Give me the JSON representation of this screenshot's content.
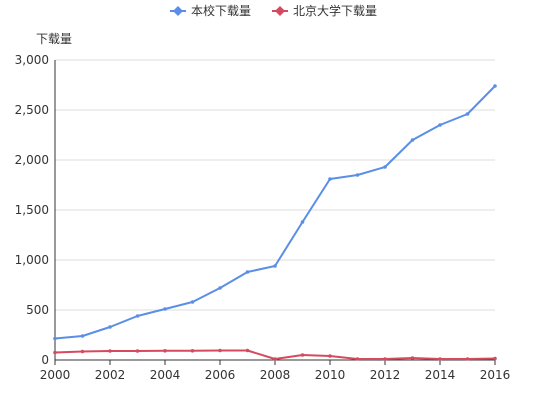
{
  "chart_data": {
    "type": "line",
    "ylabel": "下载量",
    "ylim": [
      0,
      3000
    ],
    "yticks": [
      "0",
      "500",
      "1,000",
      "1,500",
      "2,000",
      "2,500",
      "3,000"
    ],
    "ytick_values": [
      0,
      500,
      1000,
      1500,
      2000,
      2500,
      3000
    ],
    "xlim": [
      2000,
      2016
    ],
    "xticks": [
      "2000",
      "2002",
      "2004",
      "2006",
      "2008",
      "2010",
      "2012",
      "2014",
      "2016"
    ],
    "xtick_values": [
      2000,
      2002,
      2004,
      2006,
      2008,
      2010,
      2012,
      2014,
      2016
    ],
    "x": [
      2000,
      2001,
      2002,
      2003,
      2004,
      2005,
      2006,
      2007,
      2008,
      2009,
      2010,
      2011,
      2012,
      2013,
      2014,
      2015,
      2016
    ],
    "grid": "horizontal",
    "legend_position": "top-center",
    "series": [
      {
        "name": "本校下载量",
        "color": "#5b8ee6",
        "marker": "diamond",
        "values": [
          215,
          240,
          330,
          440,
          510,
          580,
          720,
          880,
          940,
          1380,
          1810,
          1850,
          1930,
          2200,
          2350,
          2460,
          2740
        ]
      },
      {
        "name": "北京大学下载量",
        "color": "#d64a5f",
        "marker": "diamond",
        "values": [
          75,
          85,
          90,
          90,
          92,
          92,
          95,
          95,
          10,
          50,
          40,
          10,
          10,
          20,
          10,
          10,
          15
        ]
      }
    ]
  }
}
